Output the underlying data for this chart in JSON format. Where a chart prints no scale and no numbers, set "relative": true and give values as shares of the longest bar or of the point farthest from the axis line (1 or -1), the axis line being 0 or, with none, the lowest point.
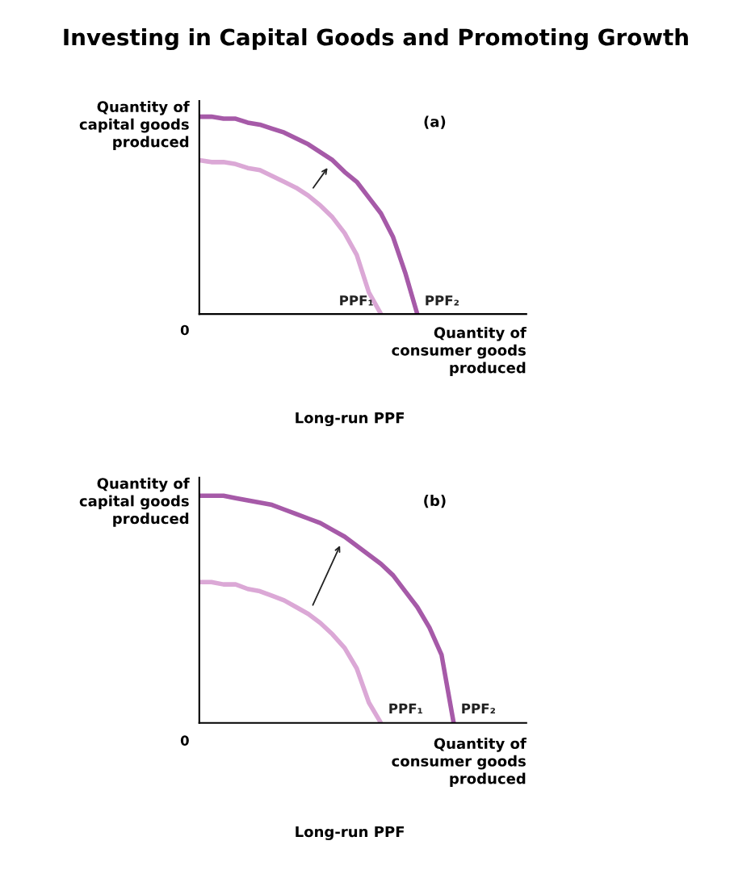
{
  "chart_data": [
    {
      "type": "line",
      "title": "Investing in Capital Goods and Promoting Growth",
      "subtitle": "(a)",
      "xlabel": "Quantity of\nconsumer goods\nproduced",
      "ylabel": "Quantity of\ncapital goods\nproduced",
      "annotations": [
        "0",
        "Long-run PPF"
      ],
      "relative": true,
      "legend": false,
      "marker": "none",
      "line_style": "solid",
      "categories": [
        null,
        null,
        null,
        null,
        null,
        null,
        null,
        null,
        null,
        null,
        null,
        null,
        null,
        null,
        null,
        null,
        null,
        null,
        null,
        null,
        null,
        null,
        null,
        null,
        null,
        null,
        null,
        null
      ],
      "series": [
        {
          "name": "PPF₁",
          "color": "#dba8d6",
          "values": [
            0.78,
            0.77,
            0.77,
            0.76,
            0.74,
            0.73,
            0.7,
            0.67,
            0.64,
            0.6,
            0.55,
            0.49,
            0.41,
            0.3,
            0.11,
            0,
            null,
            null,
            null,
            null,
            null,
            null,
            null,
            null,
            null,
            null,
            null,
            null
          ]
        },
        {
          "name": "PPF₂",
          "color": "#a65aa8",
          "values": [
            1,
            1.0,
            0.99,
            0.99,
            0.97,
            0.96,
            0.94,
            0.92,
            0.89,
            0.86,
            0.82,
            0.78,
            0.72,
            0.67,
            0.59,
            0.51,
            0.39,
            0.21,
            0,
            null,
            null,
            null,
            null,
            null,
            null,
            null,
            null,
            null
          ]
        }
      ]
    },
    {
      "type": "line",
      "subtitle": "(b)",
      "xlabel": "Quantity of\nconsumer goods\nproduced",
      "ylabel": "Quantity of\ncapital goods\nproduced",
      "annotations": [
        "0",
        "Long-run PPF"
      ],
      "relative": true,
      "legend": false,
      "marker": "none",
      "line_style": "solid",
      "categories": [
        null,
        null,
        null,
        null,
        null,
        null,
        null,
        null,
        null,
        null,
        null,
        null,
        null,
        null,
        null,
        null,
        null,
        null,
        null,
        null,
        null,
        null,
        null,
        null,
        null,
        null,
        null,
        null
      ],
      "series": [
        {
          "name": "PPF₁",
          "color": "#dba8d6",
          "values": [
            0.62,
            0.62,
            0.61,
            0.61,
            0.59,
            0.58,
            0.56,
            0.54,
            0.51,
            0.48,
            0.44,
            0.39,
            0.33,
            0.24,
            0.09,
            0,
            null,
            null,
            null,
            null,
            null,
            null,
            null,
            null,
            null,
            null,
            null,
            null
          ]
        },
        {
          "name": "PPF₂",
          "color": "#a65aa8",
          "values": [
            1,
            1.0,
            1.0,
            0.99,
            0.98,
            0.97,
            0.96,
            0.94,
            0.92,
            0.9,
            0.88,
            0.85,
            0.82,
            0.78,
            0.74,
            0.7,
            0.65,
            0.58,
            0.51,
            0.42,
            0.3,
            0,
            null,
            null,
            null,
            null,
            null,
            null
          ]
        }
      ]
    }
  ]
}
